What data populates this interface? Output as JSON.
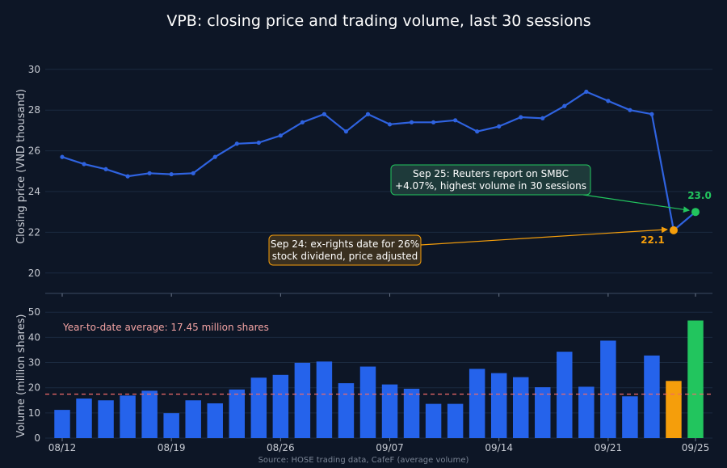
{
  "chart_data": {
    "title": "VPB: closing price and trading volume, last 30 sessions",
    "source": "Source: HOSE trading data, CafeF (average volume)",
    "x_ticks": [
      "08/12",
      "08/19",
      "08/26",
      "09/07",
      "09/14",
      "09/21",
      "09/25"
    ],
    "x_tick_index": [
      0,
      5,
      10,
      15,
      20,
      25,
      29
    ],
    "colors": {
      "line": "#2f63e0",
      "bar": "#2563eb",
      "exrights": "#f59e0b",
      "highlight": "#22c55e",
      "average": "#f06a6a",
      "grid": "#1b2a40"
    },
    "price": {
      "type": "line",
      "ylabel": "Closing price (VND thousand)",
      "ylim": [
        19,
        31.5
      ],
      "yticks": [
        20,
        22,
        24,
        26,
        28,
        30
      ],
      "values": [
        25.7,
        25.35,
        25.1,
        24.75,
        24.9,
        24.85,
        24.9,
        25.7,
        26.35,
        26.4,
        26.75,
        27.4,
        27.8,
        26.95,
        27.8,
        27.3,
        27.4,
        27.4,
        27.5,
        26.95,
        27.2,
        27.65,
        27.6,
        28.2,
        28.9,
        28.45,
        28.0,
        27.8,
        22.1,
        23.0
      ],
      "end_labels": [
        {
          "index": 28,
          "text": "22.1",
          "color": "#f59e0b"
        },
        {
          "index": 29,
          "text": "23.0",
          "color": "#22c55e"
        }
      ],
      "annotations": [
        {
          "index": 29,
          "lines": [
            "Sep 25: Reuters report on SMBC",
            "+4.07%, highest volume in 30 sessions"
          ],
          "color": "#22c55e",
          "bg": "#1e3a3a"
        },
        {
          "index": 28,
          "lines": [
            "Sep 24: ex-rights date for 26%",
            "stock dividend, price adjusted"
          ],
          "color": "#f59e0b",
          "bg": "#3a3020"
        }
      ]
    },
    "volume": {
      "type": "bar",
      "ylabel": "Volume (million shares)",
      "ylim": [
        0,
        52
      ],
      "yticks": [
        0,
        10,
        20,
        30,
        40,
        50
      ],
      "values": [
        11.2,
        15.7,
        15.0,
        16.9,
        18.8,
        9.9,
        15.0,
        13.8,
        19.3,
        24.0,
        25.1,
        29.9,
        30.4,
        21.8,
        28.4,
        21.3,
        19.6,
        13.6,
        13.6,
        27.5,
        25.8,
        24.2,
        20.2,
        34.3,
        20.4,
        38.7,
        16.6,
        32.8,
        22.7,
        46.7
      ],
      "average": 17.45,
      "average_label": "Year-to-date average: 17.45 million shares"
    }
  }
}
